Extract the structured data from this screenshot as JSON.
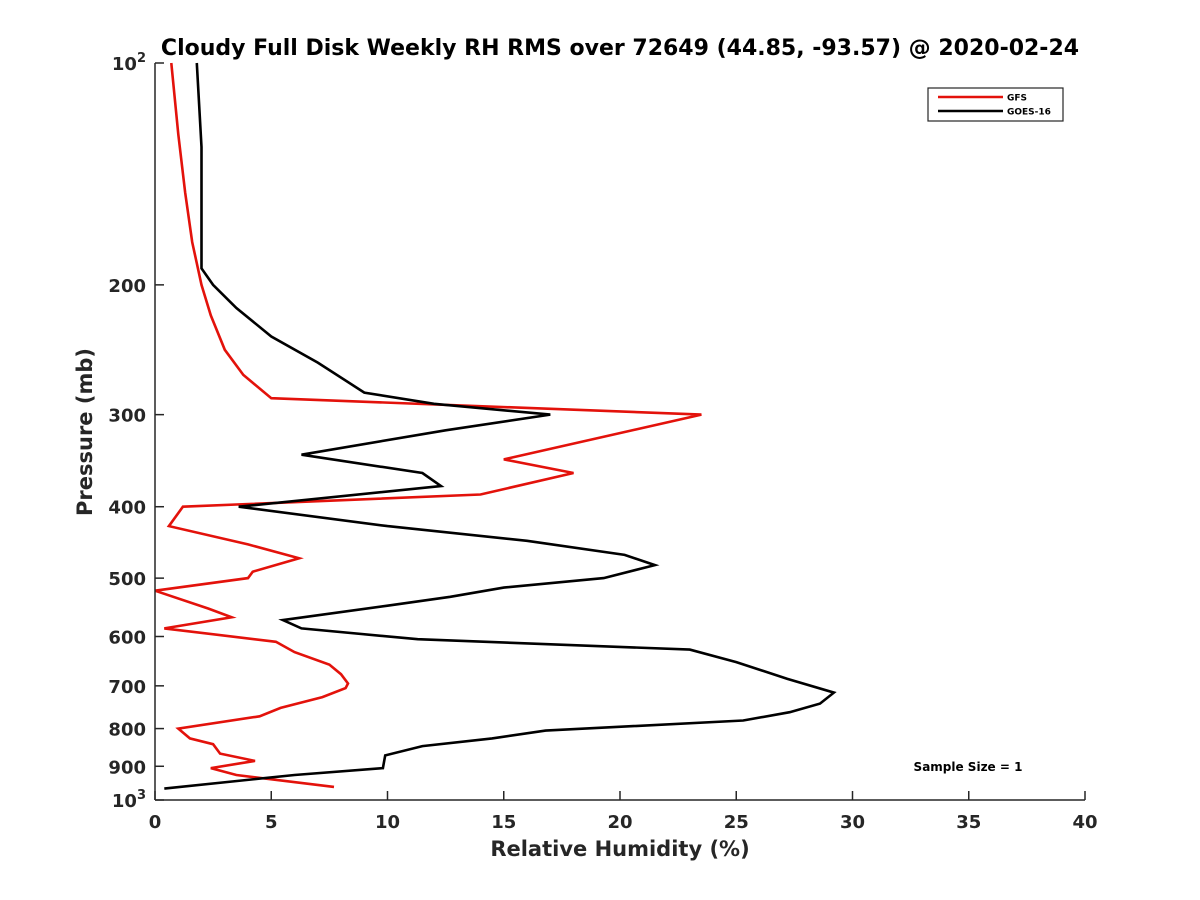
{
  "chart_data": {
    "type": "line",
    "title": "Cloudy Full Disk Weekly RH RMS over 72649 (44.85, -93.57) @ 2020-02-24",
    "xlabel": "Relative Humidity (%)",
    "ylabel": "Pressure (mb)",
    "xlim": [
      0,
      40
    ],
    "ylim": [
      100,
      1000
    ],
    "y_scale": "log",
    "y_reversed": true,
    "grid": false,
    "legend_position": "top-right",
    "x_ticks": [
      "0",
      "5",
      "10",
      "15",
      "20",
      "25",
      "30",
      "35",
      "40"
    ],
    "y_ticks": [
      {
        "value": 100,
        "base": "10",
        "exp": "2"
      },
      {
        "value": 200,
        "label": "200"
      },
      {
        "value": 300,
        "label": "300"
      },
      {
        "value": 400,
        "label": "400"
      },
      {
        "value": 500,
        "label": "500"
      },
      {
        "value": 600,
        "label": "600"
      },
      {
        "value": 700,
        "label": "700"
      },
      {
        "value": 800,
        "label": "800"
      },
      {
        "value": 900,
        "label": "900"
      },
      {
        "value": 1000,
        "base": "10",
        "exp": "3"
      }
    ],
    "annotation": "Sample Size = 1",
    "series": [
      {
        "name": "GFS",
        "color": "#e3120b",
        "points": [
          [
            0.7,
            100
          ],
          [
            1.0,
            125
          ],
          [
            1.3,
            150
          ],
          [
            1.6,
            175
          ],
          [
            2.0,
            200
          ],
          [
            2.4,
            220
          ],
          [
            3.0,
            245
          ],
          [
            3.8,
            265
          ],
          [
            5.0,
            285
          ],
          [
            23.5,
            300
          ],
          [
            15.0,
            345
          ],
          [
            18.0,
            360
          ],
          [
            14.0,
            385
          ],
          [
            1.2,
            400
          ],
          [
            0.6,
            425
          ],
          [
            4.0,
            450
          ],
          [
            6.2,
            470
          ],
          [
            4.2,
            490
          ],
          [
            4.0,
            500
          ],
          [
            0.0,
            520
          ],
          [
            2.3,
            550
          ],
          [
            3.3,
            565
          ],
          [
            0.4,
            585
          ],
          [
            5.2,
            610
          ],
          [
            6.0,
            630
          ],
          [
            7.5,
            655
          ],
          [
            8.0,
            675
          ],
          [
            8.3,
            695
          ],
          [
            8.2,
            705
          ],
          [
            7.2,
            725
          ],
          [
            5.4,
            750
          ],
          [
            4.5,
            770
          ],
          [
            1.0,
            800
          ],
          [
            1.5,
            825
          ],
          [
            2.5,
            840
          ],
          [
            2.8,
            865
          ],
          [
            4.3,
            885
          ],
          [
            2.4,
            905
          ],
          [
            3.5,
            925
          ],
          [
            7.7,
            960
          ]
        ]
      },
      {
        "name": "GOES-16",
        "color": "#000000",
        "points": [
          [
            1.8,
            100
          ],
          [
            2.0,
            130
          ],
          [
            2.0,
            190
          ],
          [
            2.5,
            200
          ],
          [
            3.5,
            215
          ],
          [
            5.0,
            235
          ],
          [
            7.0,
            255
          ],
          [
            9.0,
            280
          ],
          [
            12.0,
            290
          ],
          [
            17.0,
            300
          ],
          [
            12.5,
            315
          ],
          [
            6.3,
            340
          ],
          [
            11.5,
            360
          ],
          [
            12.3,
            375
          ],
          [
            3.6,
            400
          ],
          [
            10.0,
            425
          ],
          [
            16.0,
            445
          ],
          [
            20.2,
            465
          ],
          [
            21.5,
            480
          ],
          [
            19.3,
            500
          ],
          [
            15.0,
            515
          ],
          [
            12.7,
            530
          ],
          [
            10.0,
            545
          ],
          [
            5.5,
            570
          ],
          [
            6.3,
            585
          ],
          [
            11.3,
            605
          ],
          [
            23.0,
            625
          ],
          [
            25.0,
            650
          ],
          [
            27.2,
            685
          ],
          [
            29.2,
            715
          ],
          [
            28.6,
            740
          ],
          [
            27.3,
            760
          ],
          [
            25.3,
            780
          ],
          [
            16.8,
            805
          ],
          [
            14.5,
            825
          ],
          [
            11.5,
            845
          ],
          [
            9.9,
            870
          ],
          [
            9.8,
            905
          ],
          [
            6.0,
            925
          ],
          [
            0.4,
            965
          ]
        ]
      }
    ]
  }
}
